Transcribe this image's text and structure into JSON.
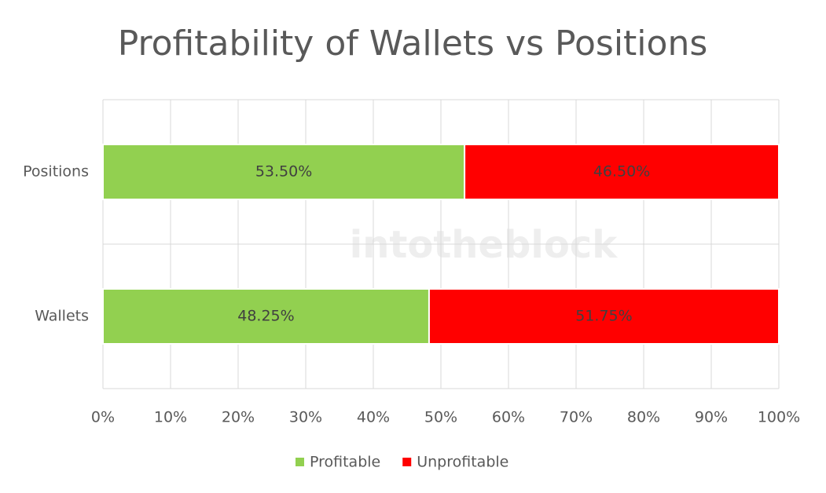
{
  "chart_data": {
    "type": "stacked_bar_horizontal",
    "title": "Profitability of Wallets vs Positions",
    "watermark": "intotheblock",
    "categories": [
      "Positions",
      "Wallets"
    ],
    "series": [
      {
        "name": "Profitable",
        "color": "#92d050",
        "values": [
          53.5,
          48.25
        ],
        "value_labels": [
          "53.50%",
          "48.25%"
        ]
      },
      {
        "name": "Unprofitable",
        "color": "#ff0000",
        "values": [
          46.5,
          51.75
        ],
        "value_labels": [
          "46.50%",
          "51.75%"
        ]
      }
    ],
    "xlim": [
      0,
      100
    ],
    "xticks": [
      {
        "value": 0,
        "label": "0%"
      },
      {
        "value": 10,
        "label": "10%"
      },
      {
        "value": 20,
        "label": "20%"
      },
      {
        "value": 30,
        "label": "30%"
      },
      {
        "value": 40,
        "label": "40%"
      },
      {
        "value": 50,
        "label": "50%"
      },
      {
        "value": 60,
        "label": "60%"
      },
      {
        "value": 70,
        "label": "70%"
      },
      {
        "value": 80,
        "label": "80%"
      },
      {
        "value": 90,
        "label": "90%"
      },
      {
        "value": 100,
        "label": "100%"
      }
    ],
    "grid": true,
    "legend": "bottom"
  }
}
